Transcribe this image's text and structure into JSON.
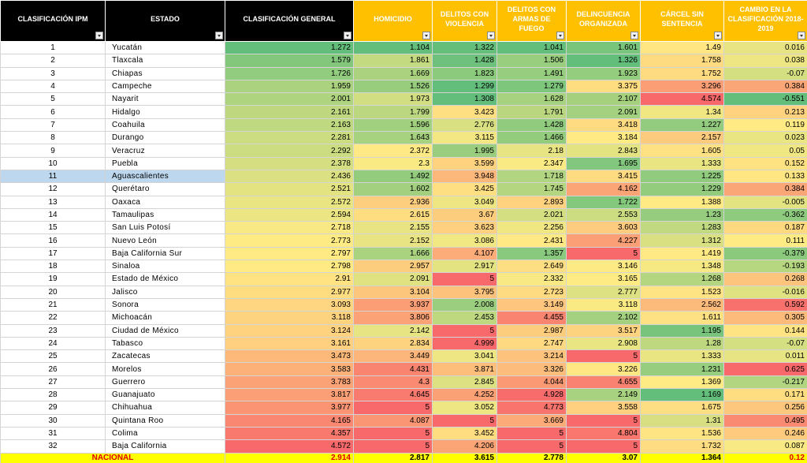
{
  "table": {
    "headers": [
      "CLASIFICACIÓN IPM",
      "ESTADO",
      "CLASIFICACIÓN GENERAL",
      "HOMICIDIO",
      "DELITOS CON VIOLENCIA",
      "DELITOS CON ARMAS DE FUEGO",
      "DELINCUENCIA ORGANIZADA",
      "CÁRCEL SIN SENTENCIA",
      "CAMBIO EN LA CLASIFICACIÓN 2018-2019"
    ],
    "rows": [
      [
        1,
        "Yucatán",
        1.272,
        1.104,
        1.322,
        1.041,
        1.601,
        1.49,
        0.016
      ],
      [
        2,
        "Tlaxcala",
        1.579,
        1.861,
        1.428,
        1.506,
        1.326,
        1.758,
        0.038
      ],
      [
        3,
        "Chiapas",
        1.726,
        1.669,
        1.823,
        1.491,
        1.923,
        1.752,
        -0.07
      ],
      [
        4,
        "Campeche",
        1.959,
        1.526,
        1.299,
        1.279,
        3.375,
        3.296,
        0.384
      ],
      [
        5,
        "Nayarit",
        2.001,
        1.973,
        1.308,
        1.628,
        2.107,
        4.574,
        -0.551
      ],
      [
        6,
        "Hidalgo",
        2.161,
        1.799,
        3.423,
        1.791,
        2.091,
        1.34,
        0.213
      ],
      [
        7,
        "Coahuila",
        2.163,
        1.596,
        2.776,
        1.428,
        3.418,
        1.227,
        0.119
      ],
      [
        8,
        "Durango",
        2.281,
        1.643,
        3.115,
        1.466,
        3.184,
        2.157,
        0.023
      ],
      [
        9,
        "Veracruz",
        2.292,
        2.372,
        1.995,
        2.18,
        2.843,
        1.605,
        0.05
      ],
      [
        10,
        "Puebla",
        2.378,
        2.3,
        3.599,
        2.347,
        1.695,
        1.333,
        0.152
      ],
      [
        11,
        "Aguascalientes",
        2.436,
        1.492,
        3.948,
        1.718,
        3.415,
        1.225,
        0.133
      ],
      [
        12,
        "Querétaro",
        2.521,
        1.602,
        3.425,
        1.745,
        4.162,
        1.229,
        0.384
      ],
      [
        13,
        "Oaxaca",
        2.572,
        2.936,
        3.049,
        2.893,
        1.722,
        1.388,
        -0.005
      ],
      [
        14,
        "Tamaulipas",
        2.594,
        2.615,
        3.67,
        2.021,
        2.553,
        1.23,
        -0.362
      ],
      [
        15,
        "San Luis Potosí",
        2.718,
        2.155,
        3.623,
        2.256,
        3.603,
        1.283,
        0.187
      ],
      [
        16,
        "Nuevo León",
        2.773,
        2.152,
        3.086,
        2.431,
        4.227,
        1.312,
        0.111
      ],
      [
        17,
        "Baja California Sur",
        2.797,
        1.666,
        4.107,
        1.357,
        5,
        1.419,
        -0.379
      ],
      [
        18,
        "Sinaloa",
        2.798,
        2.957,
        2.917,
        2.649,
        3.146,
        1.348,
        -0.193
      ],
      [
        19,
        "Estado de México",
        2.91,
        2.091,
        5,
        2.332,
        3.165,
        1.268,
        0.268
      ],
      [
        20,
        "Jalisco",
        2.977,
        3.104,
        3.795,
        2.723,
        2.777,
        1.523,
        -0.016
      ],
      [
        21,
        "Sonora",
        3.093,
        3.937,
        2.008,
        3.149,
        3.118,
        2.562,
        0.592
      ],
      [
        22,
        "Michoacán",
        3.118,
        3.806,
        2.453,
        4.455,
        2.102,
        1.611,
        0.305
      ],
      [
        23,
        "Ciudad de México",
        3.124,
        2.142,
        5,
        2.987,
        3.517,
        1.195,
        0.144
      ],
      [
        24,
        "Tabasco",
        3.161,
        2.834,
        4.999,
        2.747,
        2.908,
        1.28,
        -0.07
      ],
      [
        25,
        "Zacatecas",
        3.473,
        3.449,
        3.041,
        3.214,
        5,
        1.333,
        0.011
      ],
      [
        26,
        "Morelos",
        3.583,
        4.431,
        3.871,
        3.326,
        3.226,
        1.231,
        0.625
      ],
      [
        27,
        "Guerrero",
        3.783,
        4.3,
        2.845,
        4.044,
        4.655,
        1.369,
        -0.217
      ],
      [
        28,
        "Guanajuato",
        3.817,
        4.645,
        4.252,
        4.928,
        2.149,
        1.169,
        0.171
      ],
      [
        29,
        "Chihuahua",
        3.977,
        5,
        3.052,
        4.773,
        3.558,
        1.675,
        0.256
      ],
      [
        30,
        "Quintana Roo",
        4.165,
        4.087,
        5,
        3.669,
        5,
        1.31,
        0.495
      ],
      [
        31,
        "Colima",
        4.357,
        5,
        3.452,
        5,
        4.804,
        1.536,
        0.246
      ],
      [
        32,
        "Baja California",
        4.572,
        5,
        4.206,
        5,
        5,
        1.732,
        0.087
      ]
    ],
    "footer": {
      "label": "NACIONAL",
      "values": [
        2.914,
        2.817,
        3.615,
        2.778,
        3.07,
        1.364,
        0.12
      ]
    }
  }
}
